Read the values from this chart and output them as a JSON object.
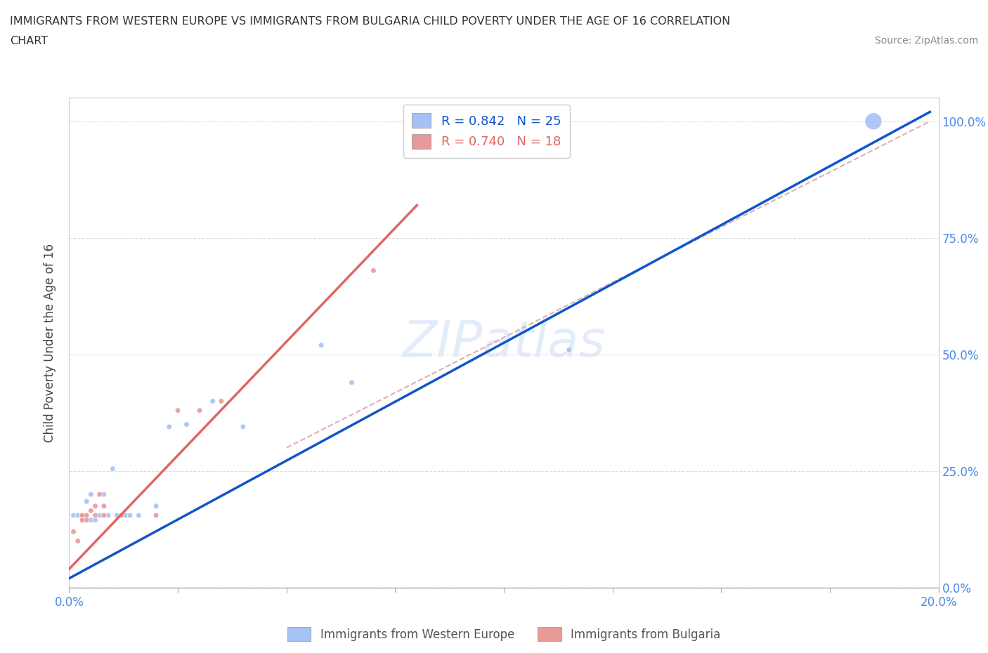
{
  "title_line1": "IMMIGRANTS FROM WESTERN EUROPE VS IMMIGRANTS FROM BULGARIA CHILD POVERTY UNDER THE AGE OF 16 CORRELATION",
  "title_line2": "CHART",
  "source": "Source: ZipAtlas.com",
  "ylabel": "Child Poverty Under the Age of 16",
  "xlim": [
    0.0,
    0.2
  ],
  "ylim": [
    0.0,
    1.05
  ],
  "yticks": [
    0.0,
    0.25,
    0.5,
    0.75,
    1.0
  ],
  "ytick_labels": [
    "0.0%",
    "25.0%",
    "50.0%",
    "75.0%",
    "100.0%"
  ],
  "xticks": [
    0.0,
    0.025,
    0.05,
    0.075,
    0.1,
    0.125,
    0.15,
    0.175,
    0.2
  ],
  "xtick_show": [
    0.0,
    0.2
  ],
  "xtick_labels_show": [
    "0.0%",
    "20.0%"
  ],
  "blue_color": "#a4c2f4",
  "pink_color": "#ea9999",
  "blue_line_color": "#1155cc",
  "pink_line_color": "#e06666",
  "dashed_line_color": "#e0b0b0",
  "watermark": "ZIPatlas",
  "R_blue": "R = 0.842",
  "N_blue": "N = 25",
  "R_pink": "R = 0.740",
  "N_pink": "N = 18",
  "legend_blue": "Immigrants from Western Europe",
  "legend_pink": "Immigrants from Bulgaria",
  "blue_scatter_x": [
    0.001,
    0.002,
    0.003,
    0.003,
    0.004,
    0.005,
    0.005,
    0.006,
    0.007,
    0.008,
    0.009,
    0.01,
    0.011,
    0.013,
    0.014,
    0.016,
    0.02,
    0.023,
    0.027,
    0.033,
    0.04,
    0.058,
    0.065,
    0.115,
    0.185
  ],
  "blue_scatter_y": [
    0.155,
    0.155,
    0.145,
    0.155,
    0.185,
    0.2,
    0.145,
    0.145,
    0.155,
    0.2,
    0.155,
    0.255,
    0.155,
    0.155,
    0.155,
    0.155,
    0.175,
    0.345,
    0.35,
    0.4,
    0.345,
    0.52,
    0.44,
    0.51,
    1.0
  ],
  "blue_scatter_size": [
    30,
    30,
    30,
    30,
    30,
    30,
    30,
    30,
    30,
    30,
    30,
    30,
    30,
    30,
    30,
    30,
    30,
    30,
    30,
    30,
    30,
    30,
    30,
    30,
    300
  ],
  "pink_scatter_x": [
    0.001,
    0.002,
    0.003,
    0.003,
    0.004,
    0.004,
    0.005,
    0.006,
    0.006,
    0.007,
    0.008,
    0.008,
    0.012,
    0.02,
    0.025,
    0.03,
    0.035,
    0.07
  ],
  "pink_scatter_y": [
    0.12,
    0.1,
    0.145,
    0.155,
    0.145,
    0.155,
    0.165,
    0.155,
    0.175,
    0.2,
    0.155,
    0.175,
    0.155,
    0.155,
    0.38,
    0.38,
    0.4,
    0.68
  ],
  "pink_scatter_size": [
    30,
    30,
    30,
    30,
    30,
    30,
    30,
    30,
    30,
    30,
    30,
    30,
    30,
    30,
    30,
    30,
    30,
    30
  ],
  "blue_line_x0": 0.0,
  "blue_line_x1": 0.198,
  "blue_line_y0": 0.02,
  "blue_line_y1": 1.02,
  "pink_line_x0": 0.0,
  "pink_line_x1": 0.08,
  "pink_line_y0": 0.04,
  "pink_line_y1": 0.82,
  "dashed_line_x0": 0.05,
  "dashed_line_x1": 0.198,
  "dashed_line_y0": 0.3,
  "dashed_line_y1": 1.0
}
